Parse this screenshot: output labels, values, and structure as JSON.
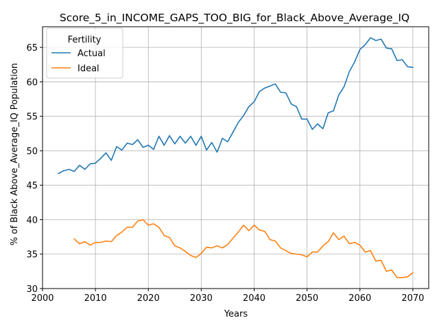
{
  "chart_data": {
    "type": "line",
    "title": "Score_5_in_INCOME_GAPS_TOO_BIG_for_Black_Above_Average_IQ",
    "xlabel": "Years",
    "ylabel": "% of Black Above_Average_IQ Population",
    "xlim": [
      2000,
      2073
    ],
    "ylim": [
      30,
      68
    ],
    "xticks": [
      2000,
      2010,
      2020,
      2030,
      2040,
      2050,
      2060,
      2070
    ],
    "yticks": [
      30,
      35,
      40,
      45,
      50,
      55,
      60,
      65
    ],
    "grid": true,
    "legend": {
      "title": "Fertility",
      "placement": "top-left"
    },
    "series": [
      {
        "name": "Actual",
        "color": "#1f77b4",
        "x": [
          2003,
          2004,
          2005,
          2006,
          2007,
          2008,
          2009,
          2010,
          2011,
          2012,
          2013,
          2014,
          2015,
          2016,
          2017,
          2018,
          2019,
          2020,
          2021,
          2022,
          2023,
          2024,
          2025,
          2026,
          2027,
          2028,
          2029,
          2030,
          2031,
          2032,
          2033,
          2034,
          2035,
          2036,
          2037,
          2038,
          2039,
          2040,
          2041,
          2042,
          2043,
          2044,
          2045,
          2046,
          2047,
          2048,
          2049,
          2050,
          2051,
          2052,
          2053,
          2054,
          2055,
          2056,
          2057,
          2058,
          2059,
          2060,
          2061,
          2062,
          2063,
          2064,
          2065,
          2066,
          2067,
          2068,
          2069,
          2070
        ],
        "values": [
          46.7,
          47.1,
          47.3,
          47.0,
          47.9,
          47.3,
          48.1,
          48.2,
          48.9,
          49.7,
          48.6,
          50.6,
          50.1,
          51.1,
          50.9,
          51.6,
          50.5,
          50.8,
          50.2,
          52.1,
          50.8,
          52.2,
          51.0,
          52.1,
          51.1,
          52.1,
          50.8,
          52.1,
          50.1,
          51.2,
          49.8,
          51.8,
          51.3,
          52.7,
          54.1,
          55.1,
          56.4,
          57.1,
          58.6,
          59.1,
          59.4,
          59.7,
          58.5,
          58.4,
          56.8,
          56.4,
          54.6,
          54.6,
          53.1,
          53.9,
          53.2,
          55.5,
          55.8,
          58.1,
          59.3,
          61.5,
          62.9,
          64.7,
          65.4,
          66.4,
          66.0,
          66.2,
          64.9,
          64.8,
          63.1,
          63.2,
          62.2,
          62.1
        ]
      },
      {
        "name": "Ideal",
        "color": "#ff7f0e",
        "x": [
          2006,
          2007,
          2008,
          2009,
          2010,
          2011,
          2012,
          2013,
          2014,
          2015,
          2016,
          2017,
          2018,
          2019,
          2020,
          2021,
          2022,
          2023,
          2024,
          2025,
          2026,
          2027,
          2028,
          2029,
          2030,
          2031,
          2032,
          2033,
          2034,
          2035,
          2036,
          2037,
          2038,
          2039,
          2040,
          2041,
          2042,
          2043,
          2044,
          2045,
          2046,
          2047,
          2048,
          2049,
          2050,
          2051,
          2052,
          2053,
          2054,
          2055,
          2056,
          2057,
          2058,
          2059,
          2060,
          2061,
          2062,
          2063,
          2064,
          2065,
          2066,
          2067,
          2068,
          2069,
          2070
        ],
        "values": [
          37.2,
          36.5,
          36.8,
          36.3,
          36.7,
          36.7,
          36.9,
          36.8,
          37.7,
          38.2,
          38.9,
          38.9,
          39.8,
          40.0,
          39.2,
          39.4,
          38.9,
          37.7,
          37.4,
          36.2,
          35.9,
          35.4,
          34.8,
          34.5,
          35.1,
          36.0,
          35.9,
          36.2,
          35.9,
          36.4,
          37.3,
          38.2,
          39.2,
          38.4,
          39.2,
          38.5,
          38.3,
          37.1,
          36.9,
          35.9,
          35.5,
          35.1,
          35.0,
          34.9,
          34.6,
          35.3,
          35.3,
          36.2,
          36.8,
          38.1,
          37.1,
          37.6,
          36.5,
          36.7,
          36.3,
          35.3,
          35.5,
          34.0,
          34.1,
          32.5,
          32.7,
          31.6,
          31.6,
          31.7,
          32.3
        ]
      }
    ]
  }
}
